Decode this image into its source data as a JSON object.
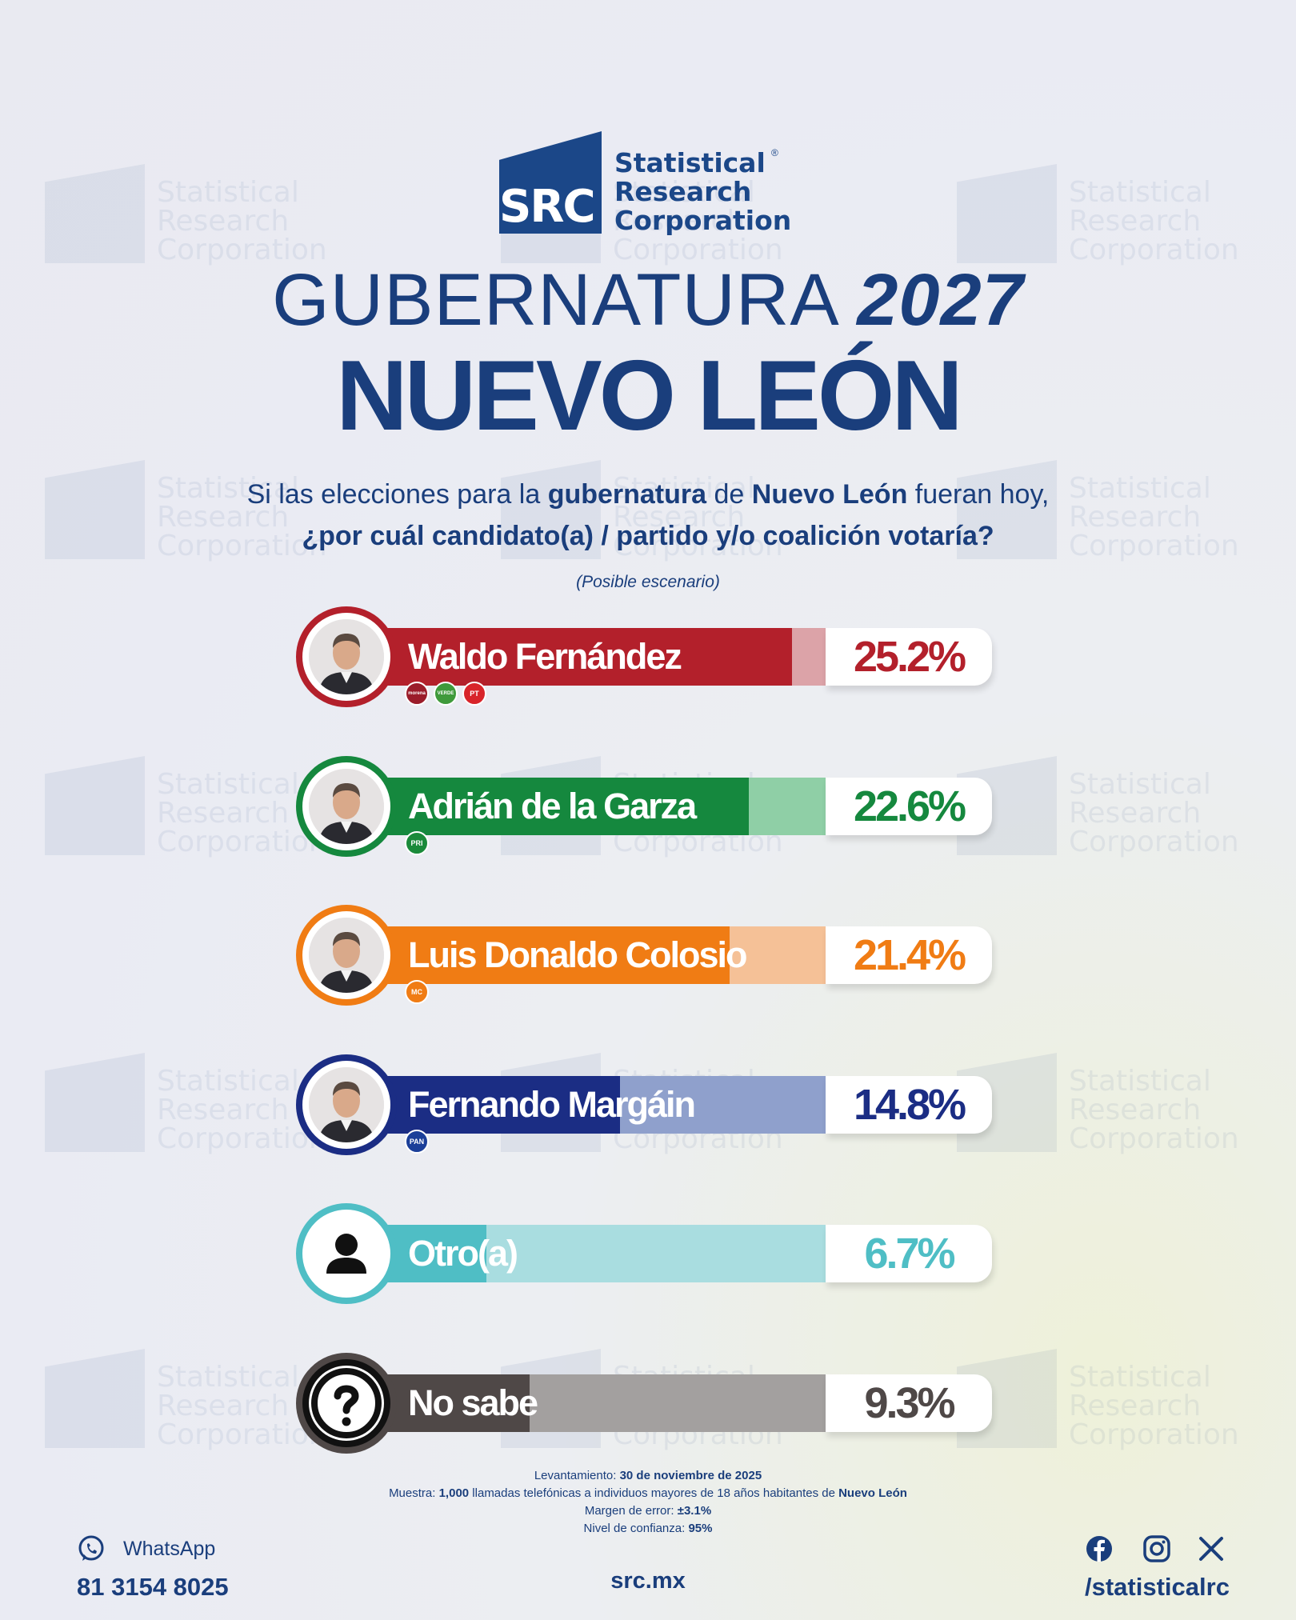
{
  "brand": {
    "logo_abbrev": "SRC",
    "logo_lines": [
      "Statistical",
      "Research",
      "Corporation"
    ],
    "registered": "®",
    "color": "#1b4788"
  },
  "header": {
    "title_light": "GUBERNATURA",
    "title_year": "2027",
    "title_state": "NUEVO LEÓN"
  },
  "question": {
    "p1": "Si las elecciones para la ",
    "p2": "gubernatura",
    "p3": " de ",
    "p4": "Nuevo León",
    "p5": " fueran hoy,",
    "line2": "¿por cuál candidato(a) / partido y/o coalición votaría?",
    "scenario": "(Posible escenario)"
  },
  "chart_data": {
    "type": "bar",
    "orientation": "horizontal",
    "categories": [
      "Waldo Fernández",
      "Adrián de la Garza",
      "Luis Donaldo Colosio",
      "Fernando Margáin",
      "Otro(a)",
      "No sabe"
    ],
    "values": [
      25.2,
      22.6,
      21.4,
      14.8,
      6.7,
      9.3
    ],
    "value_labels": [
      "25.2%",
      "22.6%",
      "21.4%",
      "14.8%",
      "6.7%",
      "9.3%"
    ],
    "colors": [
      "#b3202b",
      "#15883e",
      "#f07c14",
      "#1b2d84",
      "#4fbec5",
      "#4f4847"
    ],
    "light_colors": [
      "#dca3a8",
      "#8fcfa6",
      "#f5c197",
      "#8fa0cc",
      "#a9dde0",
      "#a3a09f"
    ],
    "parties": [
      [
        "morena",
        "VERDE",
        "PT"
      ],
      [
        "PRI"
      ],
      [
        "MC"
      ],
      [
        "PAN"
      ],
      [],
      []
    ],
    "avatar_icons": [
      "candidate-photo",
      "candidate-photo",
      "candidate-photo",
      "candidate-photo",
      "person-icon",
      "question-icon"
    ]
  },
  "footer": {
    "levantamiento_label": "Levantamiento: ",
    "levantamiento_value": "30 de noviembre de 2025",
    "muestra_label": "Muestra: ",
    "muestra_value": "1,000",
    "muestra_mid": " llamadas telefónicas a individuos mayores de 18 años habitantes de ",
    "muestra_place": "Nuevo León",
    "margen_label": "Margen de error: ",
    "margen_value": "±3.1%",
    "nivel_label": "Nivel de confianza: ",
    "nivel_value": "95%",
    "whatsapp_label": "WhatsApp",
    "whatsapp_number": "81 3154 8025",
    "website": "src.mx",
    "social_handle": "/statisticalrc"
  }
}
